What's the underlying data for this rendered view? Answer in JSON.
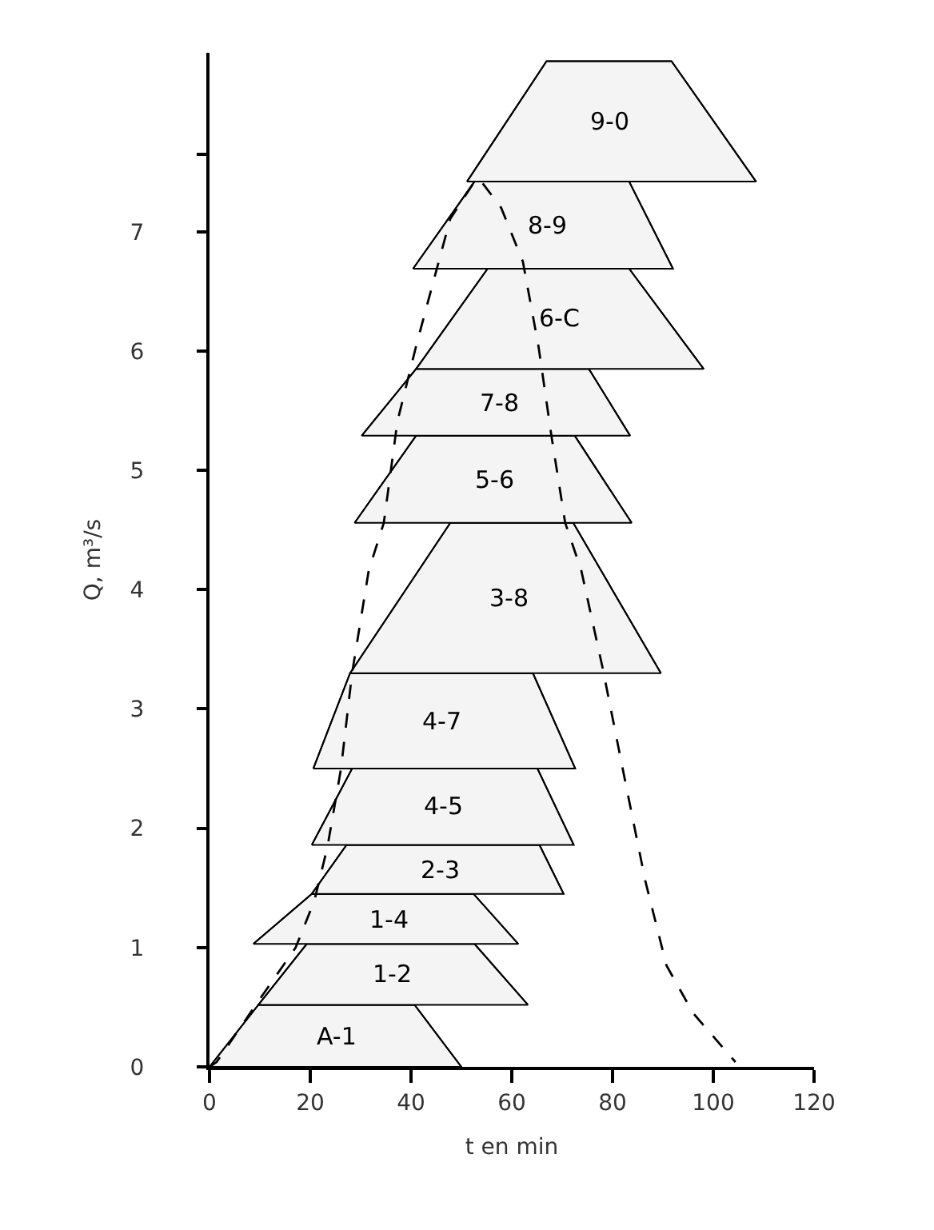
{
  "chart_data": {
    "type": "line",
    "xlabel": "t en min",
    "ylabel": "Q, m³/s",
    "xlim": [
      0,
      120
    ],
    "xticks": [
      0,
      20,
      40,
      60,
      80,
      100,
      120
    ],
    "ylim": [
      0,
      8.5
    ],
    "yticks": [
      0,
      1,
      2,
      3,
      4,
      5,
      6,
      7,
      {
        "value": 7.65,
        "label": null
      }
    ],
    "marker": "none",
    "series": [
      {
        "name": "A-1",
        "color": "#000000",
        "line_style": "solid",
        "x": [
          0,
          9.7,
          40.7,
          50
        ],
        "values": [
          0,
          0.52,
          0.52,
          0
        ],
        "lower": [
          0,
          0,
          0,
          0
        ],
        "upper": [
          0,
          0.52,
          0.52,
          0
        ]
      },
      {
        "name": "1-2",
        "color": "#000000",
        "line_style": "solid",
        "x": [
          9.7,
          19.3,
          52.6,
          63.2
        ],
        "values": [
          0.52,
          1.03,
          1.03,
          0.52
        ],
        "lower": [
          0.52,
          0.52,
          0.52,
          0.52
        ],
        "upper": [
          0.52,
          1.03,
          1.03,
          0.52
        ]
      },
      {
        "name": "1-4",
        "color": "#000000",
        "line_style": "solid",
        "x": [
          8.7,
          20.3,
          52.4,
          61.3
        ],
        "values": [
          1.03,
          1.45,
          1.45,
          1.03
        ],
        "lower": [
          1.03,
          1.03,
          1.03,
          1.03
        ],
        "upper": [
          1.03,
          1.45,
          1.45,
          1.03
        ]
      },
      {
        "name": "2-3",
        "color": "#000000",
        "line_style": "solid",
        "x": [
          20.3,
          27.2,
          65.5,
          70.3
        ],
        "values": [
          1.45,
          1.86,
          1.86,
          1.45
        ],
        "lower": [
          1.45,
          1.45,
          1.45,
          1.45
        ],
        "upper": [
          1.45,
          1.86,
          1.86,
          1.45
        ]
      },
      {
        "name": "4-5",
        "color": "#000000",
        "line_style": "solid",
        "x": [
          20.3,
          28.3,
          65.1,
          72.3
        ],
        "values": [
          1.86,
          2.5,
          2.5,
          1.86
        ],
        "lower": [
          1.86,
          1.86,
          1.86,
          1.86
        ],
        "upper": [
          1.86,
          2.5,
          2.5,
          1.86
        ]
      },
      {
        "name": "4-7",
        "color": "#000000",
        "line_style": "solid",
        "x": [
          20.6,
          27.9,
          64.2,
          72.6
        ],
        "values": [
          2.5,
          3.3,
          3.3,
          2.5
        ],
        "lower": [
          2.5,
          2.5,
          2.5,
          2.5
        ],
        "upper": [
          2.5,
          3.3,
          3.3,
          2.5
        ]
      },
      {
        "name": "3-8",
        "color": "#000000",
        "line_style": "solid",
        "x": [
          27.9,
          47.8,
          72.2,
          89.6
        ],
        "values": [
          3.3,
          4.56,
          4.56,
          3.3
        ],
        "lower": [
          3.3,
          3.3,
          3.3,
          3.3
        ],
        "upper": [
          3.3,
          4.56,
          4.56,
          3.3
        ]
      },
      {
        "name": "5-6",
        "color": "#000000",
        "line_style": "solid",
        "x": [
          28.8,
          41.0,
          72.5,
          83.8
        ],
        "values": [
          4.56,
          5.29,
          5.29,
          4.56
        ],
        "lower": [
          4.56,
          4.56,
          4.56,
          4.56
        ],
        "upper": [
          4.56,
          5.29,
          5.29,
          4.56
        ]
      },
      {
        "name": "7-8",
        "color": "#000000",
        "line_style": "solid",
        "x": [
          30.2,
          41.0,
          75.3,
          83.5
        ],
        "values": [
          5.29,
          5.85,
          5.85,
          5.29
        ],
        "lower": [
          5.29,
          5.29,
          5.29,
          5.29
        ],
        "upper": [
          5.29,
          5.85,
          5.85,
          5.29
        ]
      },
      {
        "name": "6-C",
        "color": "#000000",
        "line_style": "solid",
        "x": [
          41.0,
          55.2,
          83.3,
          98.1
        ],
        "values": [
          5.85,
          6.69,
          6.69,
          5.85
        ],
        "lower": [
          5.85,
          5.85,
          5.85,
          5.85
        ],
        "upper": [
          5.85,
          6.69,
          6.69,
          5.85
        ]
      },
      {
        "name": "8-9",
        "color": "#000000",
        "line_style": "solid",
        "x": [
          40.4,
          52.6,
          83.3,
          92.0
        ],
        "values": [
          6.69,
          7.42,
          7.42,
          6.69
        ],
        "lower": [
          6.69,
          6.69,
          6.69,
          6.69
        ],
        "upper": [
          6.69,
          7.42,
          7.42,
          6.69
        ]
      },
      {
        "name": "9-0",
        "color": "#000000",
        "line_style": "solid",
        "x": [
          51.1,
          66.9,
          91.7,
          108.5
        ],
        "values": [
          7.42,
          8.43,
          8.43,
          7.42
        ],
        "lower": [
          7.42,
          7.42,
          7.42,
          7.42
        ],
        "upper": [
          7.42,
          8.43,
          8.43,
          7.42
        ]
      },
      {
        "color": "#000000",
        "line_style": "dashed",
        "x": [
          0,
          1.4,
          9.7,
          17.1,
          20.8,
          23.4,
          26.1,
          28.3,
          31.6,
          34.6,
          37.3,
          41.0,
          44.1,
          47.8,
          52.6,
          53.6,
          57.9,
          62.2,
          65.3,
          67.9,
          70.6,
          73.8,
          78.0,
          82.2,
          86.5,
          90.7,
          96.0,
          104.4
        ],
        "values": [
          0,
          0.04,
          0.55,
          1.0,
          1.39,
          1.84,
          2.5,
          3.3,
          4.16,
          4.56,
          5.41,
          6.04,
          6.53,
          7.11,
          7.42,
          7.44,
          7.2,
          6.75,
          6.04,
          5.28,
          4.56,
          4.16,
          3.35,
          2.46,
          1.56,
          0.85,
          0.45,
          0.04
        ]
      }
    ]
  }
}
